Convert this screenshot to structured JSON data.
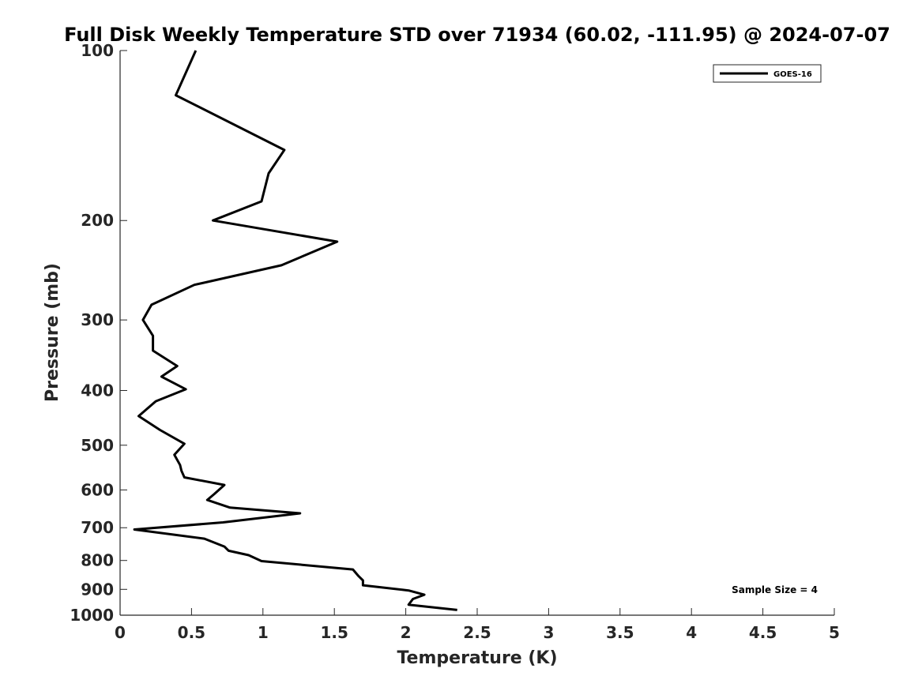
{
  "chart_data": {
    "type": "line",
    "title": "Full Disk Weekly Temperature STD over 71934 (60.02, -111.95) @ 2024-07-07",
    "xlabel": "Temperature (K)",
    "ylabel": "Pressure (mb)",
    "xlim": [
      0,
      5
    ],
    "ylim": [
      1000,
      100
    ],
    "y_scale": "log",
    "y_reversed": true,
    "grid": false,
    "legend_position": "top-right",
    "x_ticks": [
      "0",
      "0.5",
      "1",
      "1.5",
      "2",
      "2.5",
      "3",
      "3.5",
      "4",
      "4.5",
      "5"
    ],
    "x_tick_values": [
      0,
      0.5,
      1,
      1.5,
      2,
      2.5,
      3,
      3.5,
      4,
      4.5,
      5
    ],
    "y_ticks": [
      "100",
      "200",
      "300",
      "400",
      "500",
      "600",
      "700",
      "800",
      "900",
      "1000"
    ],
    "y_tick_values": [
      100,
      200,
      300,
      400,
      500,
      600,
      700,
      800,
      900,
      1000
    ],
    "series": [
      {
        "name": "GOES-16",
        "color": "#000000",
        "x": [
          0.53,
          0.39,
          1.15,
          1.04,
          0.99,
          0.65,
          1.52,
          1.13,
          0.52,
          0.22,
          0.16,
          0.23,
          0.23,
          0.4,
          0.29,
          0.46,
          0.25,
          0.13,
          0.28,
          0.45,
          0.38,
          0.42,
          0.43,
          0.45,
          0.73,
          0.66,
          0.61,
          0.77,
          1.26,
          0.72,
          0.1,
          0.59,
          0.73,
          0.76,
          0.9,
          0.99,
          1.63,
          1.67,
          1.7,
          1.7,
          2.02,
          2.13,
          2.05,
          2.02,
          2.36
        ],
        "y": [
          100,
          120,
          150,
          165,
          185,
          200,
          218,
          240,
          260,
          282,
          300,
          320,
          340,
          362,
          378,
          398,
          418,
          444,
          470,
          497,
          520,
          542,
          555,
          570,
          588,
          610,
          625,
          645,
          660,
          685,
          705,
          732,
          756,
          769,
          783,
          802,
          830,
          853,
          868,
          885,
          904,
          920,
          936,
          958,
          979
        ]
      }
    ],
    "annotations": [
      "Sample Size = 4"
    ]
  }
}
